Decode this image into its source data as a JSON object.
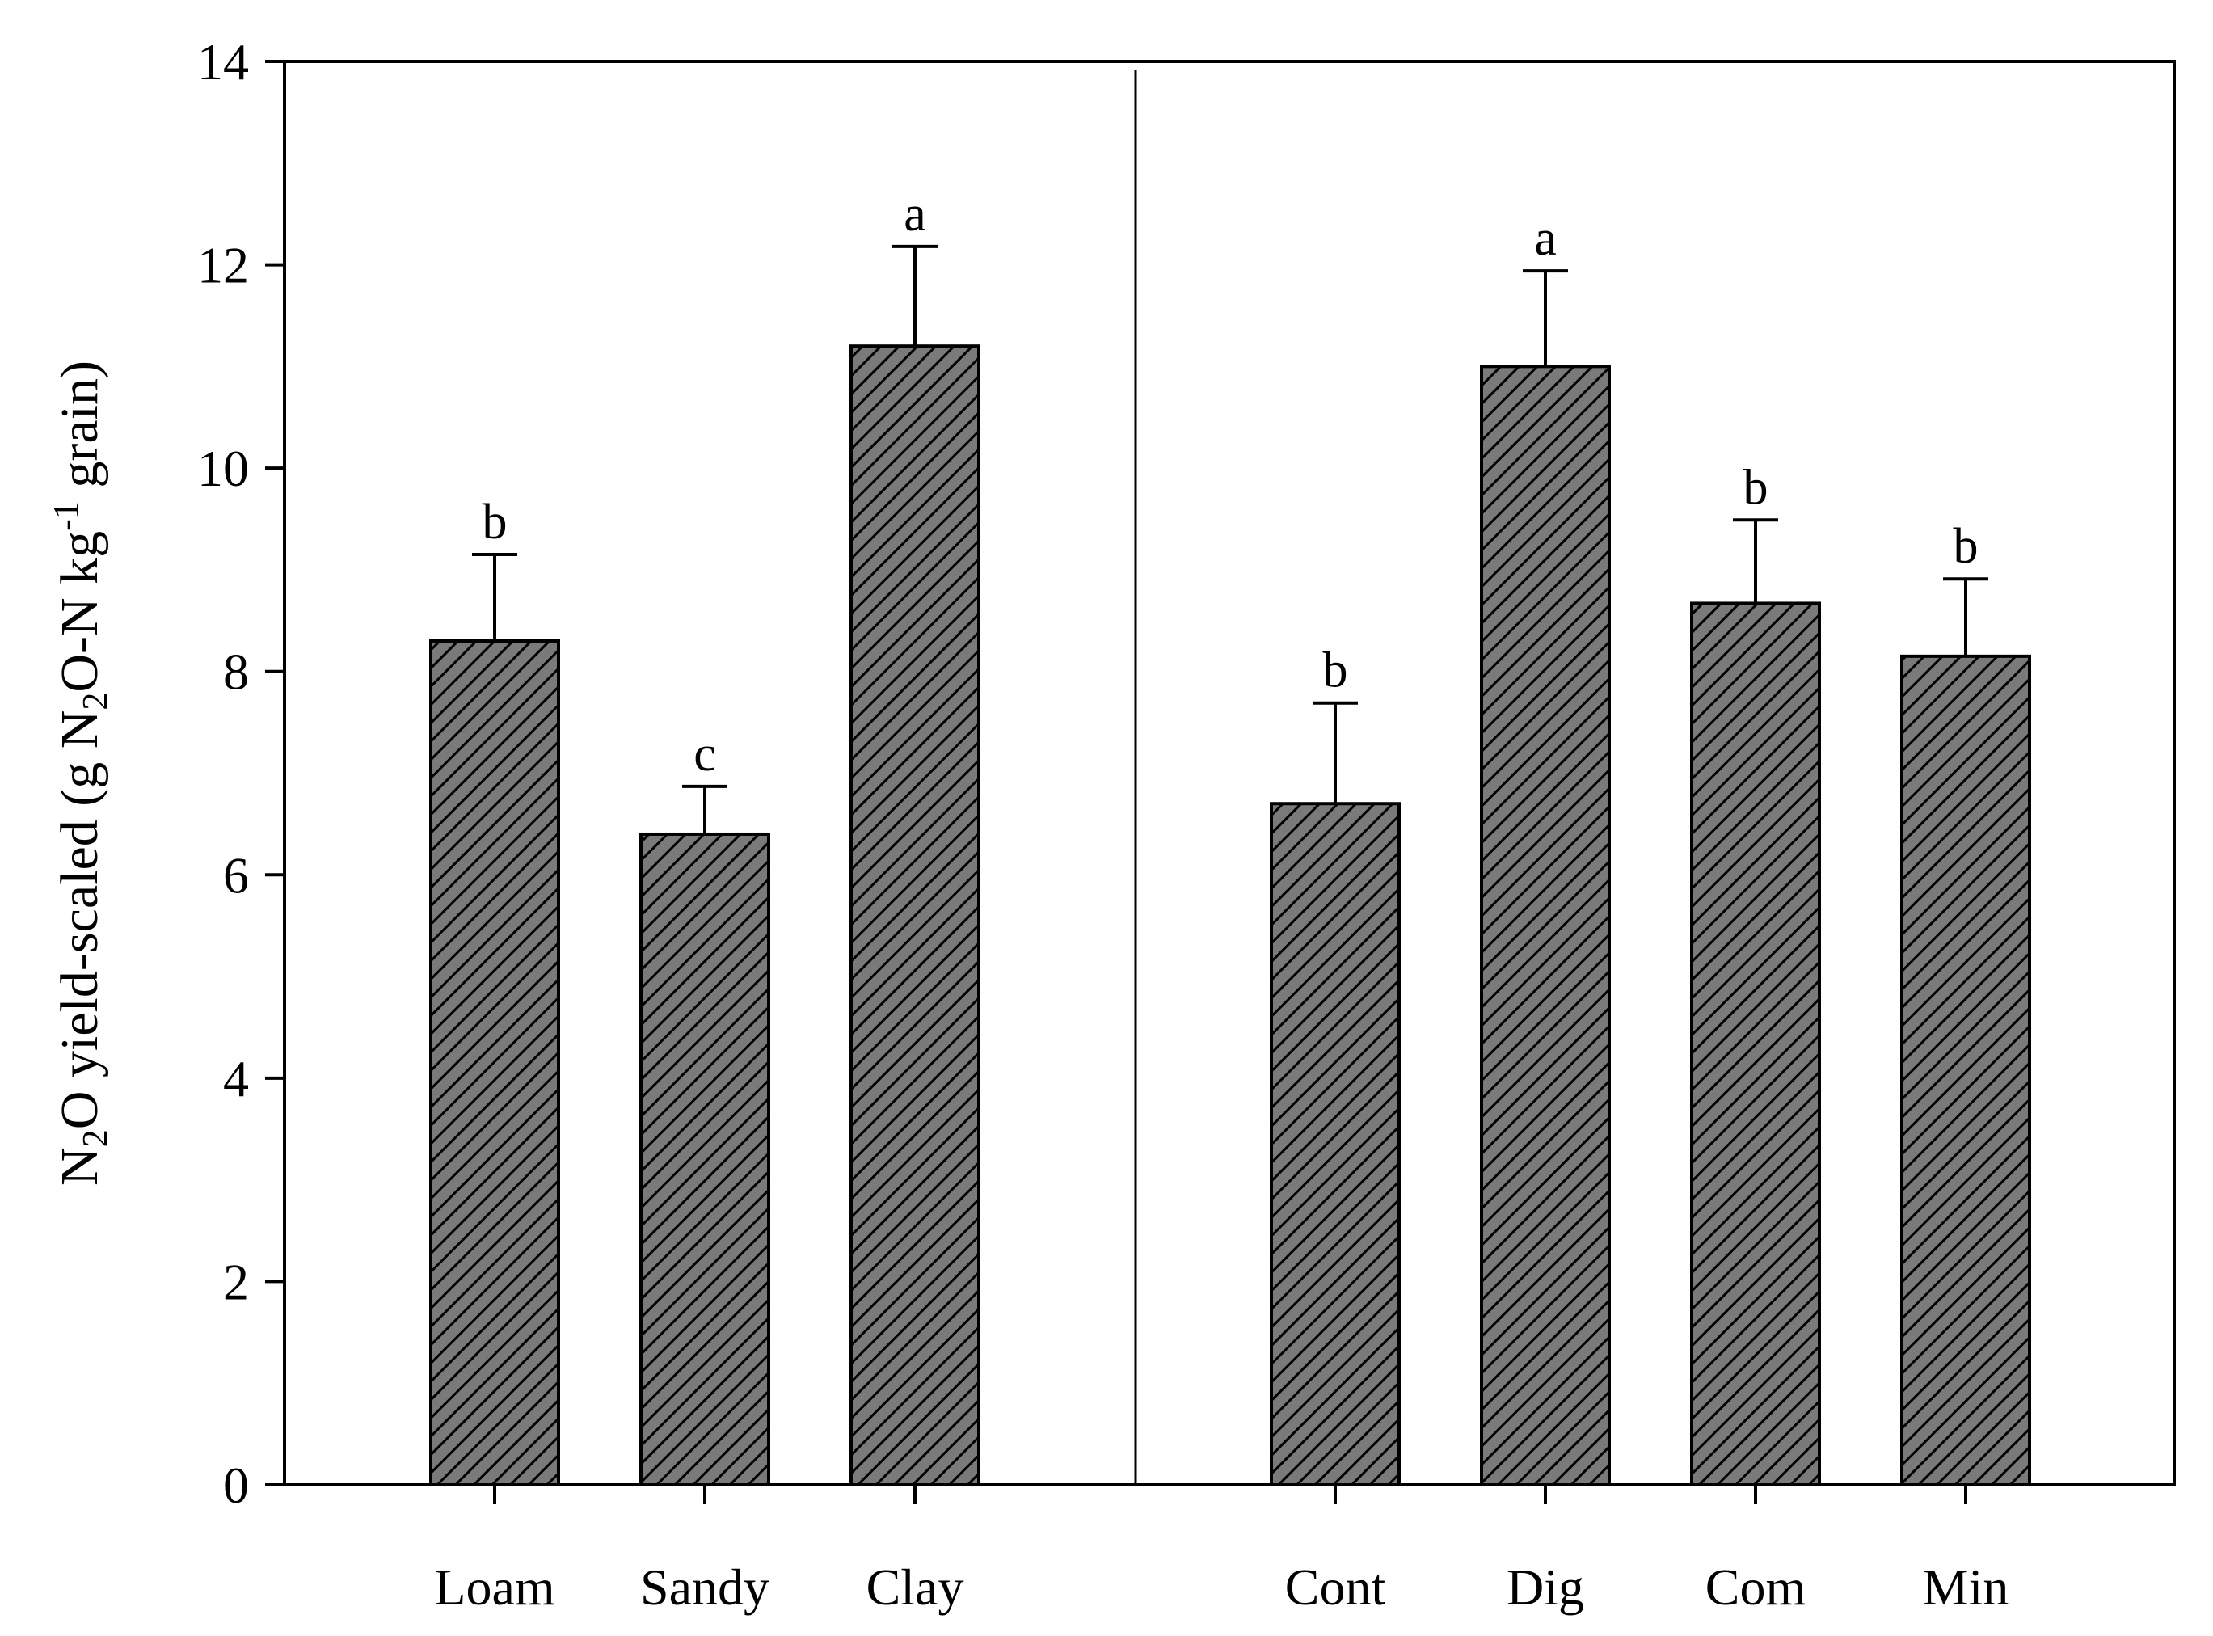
{
  "chart_data": {
    "type": "bar",
    "title": "",
    "xlabel": "",
    "ylabel": {
      "parts": [
        {
          "t": "N",
          "s": "n"
        },
        {
          "t": "2",
          "s": "sub"
        },
        {
          "t": "O yield-scaled (g N",
          "s": "n"
        },
        {
          "t": "2",
          "s": "sub"
        },
        {
          "t": "O-N kg",
          "s": "n"
        },
        {
          "t": "-1",
          "s": "sup"
        },
        {
          "t": " grain)",
          "s": "n"
        }
      ]
    },
    "ylim": [
      0,
      14
    ],
    "yticks": [
      0,
      2,
      4,
      6,
      8,
      10,
      12,
      14
    ],
    "groups": [
      {
        "name": "soil",
        "categories": [
          "Loam",
          "Sandy",
          "Clay"
        ],
        "values": [
          8.3,
          6.4,
          11.2
        ],
        "errors": [
          0.85,
          0.47,
          0.98
        ],
        "letters": [
          "b",
          "c",
          "a"
        ]
      },
      {
        "name": "fertilizer",
        "categories": [
          "Cont",
          "Dig",
          "Com",
          "Min"
        ],
        "values": [
          6.7,
          11.0,
          8.67,
          8.15
        ],
        "errors": [
          0.99,
          0.94,
          0.82,
          0.76
        ],
        "letters": [
          "b",
          "a",
          "b",
          "b"
        ]
      }
    ],
    "bar_fill": "#7a7a7a",
    "hatch_color": "#000000",
    "legend": "none",
    "grid": false
  }
}
